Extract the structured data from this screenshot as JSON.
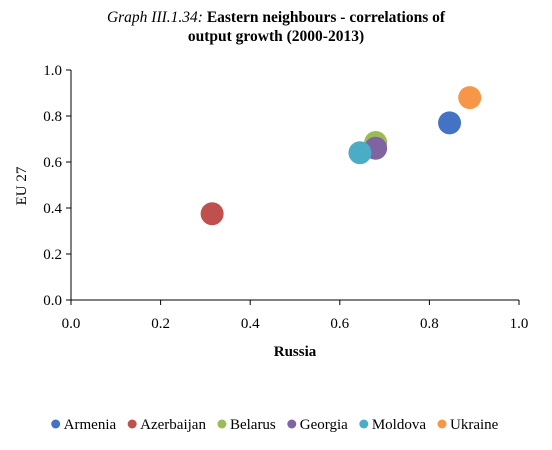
{
  "chart_data": {
    "type": "scatter",
    "title_prefix": "Graph III.1.34:",
    "title_line1": "Eastern neighbours - correlations of",
    "title_line2": "output growth (2000-2013)",
    "xlabel": "Russia",
    "ylabel": "EU 27",
    "xlim": [
      0.0,
      1.0
    ],
    "ylim": [
      0.0,
      1.0
    ],
    "x_ticks": [
      "0.0",
      "0.2",
      "0.4",
      "0.6",
      "0.8",
      "1.0"
    ],
    "y_ticks": [
      "0.0",
      "0.2",
      "0.4",
      "0.6",
      "0.8",
      "1.0"
    ],
    "grid": false,
    "legend_position": "bottom",
    "series": [
      {
        "name": "Armenia",
        "color": "#4472C4",
        "x": 0.845,
        "y": 0.77
      },
      {
        "name": "Azerbaijan",
        "color": "#C0504D",
        "x": 0.315,
        "y": 0.375
      },
      {
        "name": "Belarus",
        "color": "#9BBB59",
        "x": 0.68,
        "y": 0.685
      },
      {
        "name": "Georgia",
        "color": "#8064A2",
        "x": 0.68,
        "y": 0.66
      },
      {
        "name": "Moldova",
        "color": "#4BACC6",
        "x": 0.645,
        "y": 0.64
      },
      {
        "name": "Ukraine",
        "color": "#F79646",
        "x": 0.89,
        "y": 0.88
      }
    ]
  }
}
